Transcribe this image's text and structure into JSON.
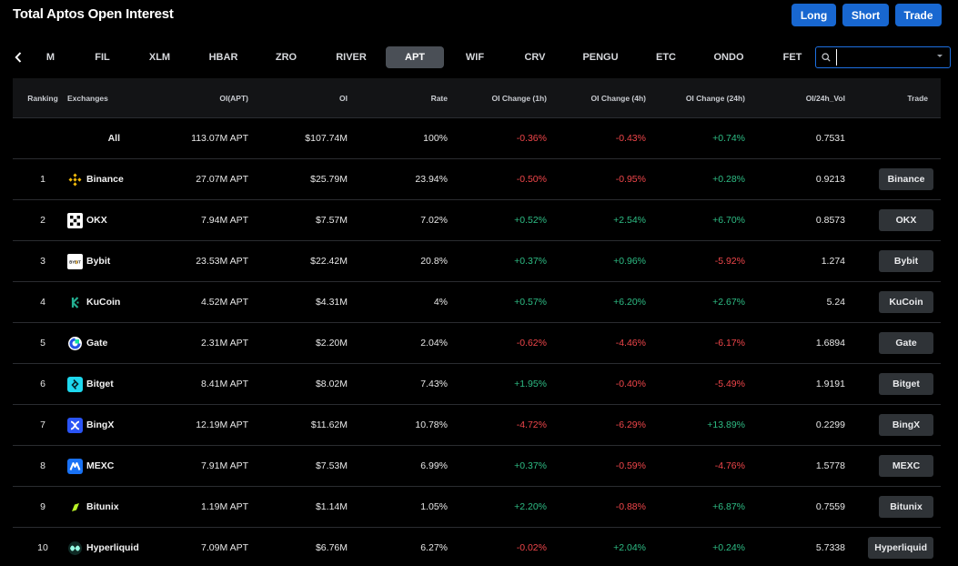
{
  "header": {
    "title": "Total Aptos Open Interest",
    "buttons": {
      "long": "Long",
      "short": "Short",
      "trade": "Trade"
    }
  },
  "coins": [
    "M",
    "FIL",
    "XLM",
    "HBAR",
    "ZRO",
    "RIVER",
    "APT",
    "WIF",
    "CRV",
    "PENGU",
    "ETC",
    "ONDO",
    "FET"
  ],
  "active_coin": "APT",
  "search": {
    "value": "",
    "icon": "search-icon"
  },
  "table": {
    "headers": {
      "rank": "Ranking",
      "exchange": "Exchanges",
      "oi_apt": "OI(APT)",
      "oi": "OI",
      "rate": "Rate",
      "ch1": "OI Change (1h)",
      "ch4": "OI Change (4h)",
      "ch24": "OI Change (24h)",
      "vol": "OI/24h_Vol",
      "trade": "Trade"
    },
    "all": {
      "label": "All",
      "oi_apt": "113.07M APT",
      "oi": "$107.74M",
      "rate": "100%",
      "ch1": "-0.36%",
      "ch4": "-0.43%",
      "ch24": "+0.74%",
      "vol": "0.7531"
    },
    "rows": [
      {
        "rank": "1",
        "exchange": "Binance",
        "oi_apt": "27.07M APT",
        "oi": "$25.79M",
        "rate": "23.94%",
        "ch1": "-0.50%",
        "ch4": "-0.95%",
        "ch24": "+0.28%",
        "vol": "0.9213",
        "trade": "Binance"
      },
      {
        "rank": "2",
        "exchange": "OKX",
        "oi_apt": "7.94M APT",
        "oi": "$7.57M",
        "rate": "7.02%",
        "ch1": "+0.52%",
        "ch4": "+2.54%",
        "ch24": "+6.70%",
        "vol": "0.8573",
        "trade": "OKX"
      },
      {
        "rank": "3",
        "exchange": "Bybit",
        "oi_apt": "23.53M APT",
        "oi": "$22.42M",
        "rate": "20.8%",
        "ch1": "+0.37%",
        "ch4": "+0.96%",
        "ch24": "-5.92%",
        "vol": "1.274",
        "trade": "Bybit"
      },
      {
        "rank": "4",
        "exchange": "KuCoin",
        "oi_apt": "4.52M APT",
        "oi": "$4.31M",
        "rate": "4%",
        "ch1": "+0.57%",
        "ch4": "+6.20%",
        "ch24": "+2.67%",
        "vol": "5.24",
        "trade": "KuCoin"
      },
      {
        "rank": "5",
        "exchange": "Gate",
        "oi_apt": "2.31M APT",
        "oi": "$2.20M",
        "rate": "2.04%",
        "ch1": "-0.62%",
        "ch4": "-4.46%",
        "ch24": "-6.17%",
        "vol": "1.6894",
        "trade": "Gate"
      },
      {
        "rank": "6",
        "exchange": "Bitget",
        "oi_apt": "8.41M APT",
        "oi": "$8.02M",
        "rate": "7.43%",
        "ch1": "+1.95%",
        "ch4": "-0.40%",
        "ch24": "-5.49%",
        "vol": "1.9191",
        "trade": "Bitget"
      },
      {
        "rank": "7",
        "exchange": "BingX",
        "oi_apt": "12.19M APT",
        "oi": "$11.62M",
        "rate": "10.78%",
        "ch1": "-4.72%",
        "ch4": "-6.29%",
        "ch24": "+13.89%",
        "vol": "0.2299",
        "trade": "BingX"
      },
      {
        "rank": "8",
        "exchange": "MEXC",
        "oi_apt": "7.91M APT",
        "oi": "$7.53M",
        "rate": "6.99%",
        "ch1": "+0.37%",
        "ch4": "-0.59%",
        "ch24": "-4.76%",
        "vol": "1.5778",
        "trade": "MEXC"
      },
      {
        "rank": "9",
        "exchange": "Bitunix",
        "oi_apt": "1.19M APT",
        "oi": "$1.14M",
        "rate": "1.05%",
        "ch1": "+2.20%",
        "ch4": "-0.88%",
        "ch24": "+6.87%",
        "vol": "0.7559",
        "trade": "Bitunix"
      },
      {
        "rank": "10",
        "exchange": "Hyperliquid",
        "oi_apt": "7.09M APT",
        "oi": "$6.76M",
        "rate": "6.27%",
        "ch1": "-0.02%",
        "ch4": "+2.04%",
        "ch24": "+0.24%",
        "vol": "5.7338",
        "trade": "Hyperliquid"
      }
    ]
  },
  "colors": {
    "positive": "#2ebd85",
    "negative": "#f0464a",
    "accent": "#1867d0",
    "active_tab": "#4a4f56"
  }
}
